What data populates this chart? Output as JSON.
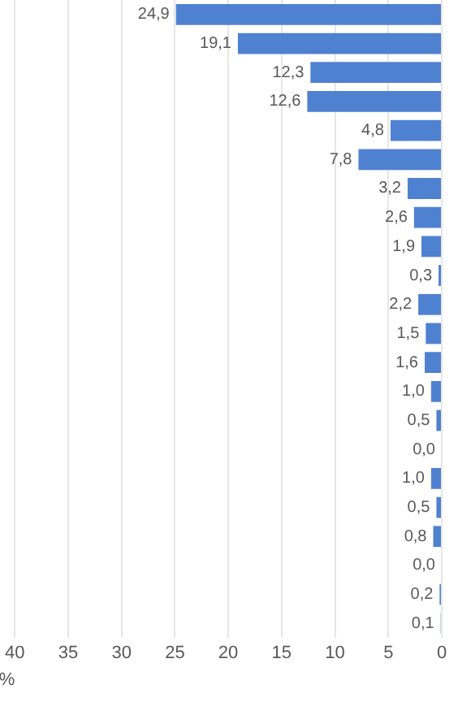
{
  "chart_data": {
    "type": "bar",
    "orientation": "horizontal",
    "xlabel": "%",
    "categories": [
      null,
      null,
      null,
      null,
      null,
      null,
      null,
      null,
      null,
      null,
      null,
      null,
      null,
      null,
      null,
      null,
      null,
      null,
      null,
      null,
      null,
      null
    ],
    "values": [
      24.9,
      19.1,
      12.3,
      12.6,
      4.8,
      7.8,
      3.2,
      2.6,
      1.9,
      0.3,
      2.2,
      1.5,
      1.6,
      1.0,
      0.5,
      0.0,
      1.0,
      0.5,
      0.8,
      0.0,
      0.2,
      0.1
    ],
    "value_labels": [
      "24,9",
      "19,1",
      "12,3",
      "12,6",
      "4,8",
      "7,8",
      "3,2",
      "2,6",
      "1,9",
      "0,3",
      "2,2",
      "1,5",
      "1,6",
      "1,0",
      "0,5",
      "0,0",
      "1,0",
      "0,5",
      "0,8",
      "0,0",
      "0,2",
      "0,1"
    ],
    "color": "#4f81d1",
    "xlim": [
      40,
      0
    ],
    "xticks": [
      40,
      35,
      30,
      25,
      20,
      15,
      10,
      5,
      0
    ],
    "grid": "x",
    "legend": false
  }
}
